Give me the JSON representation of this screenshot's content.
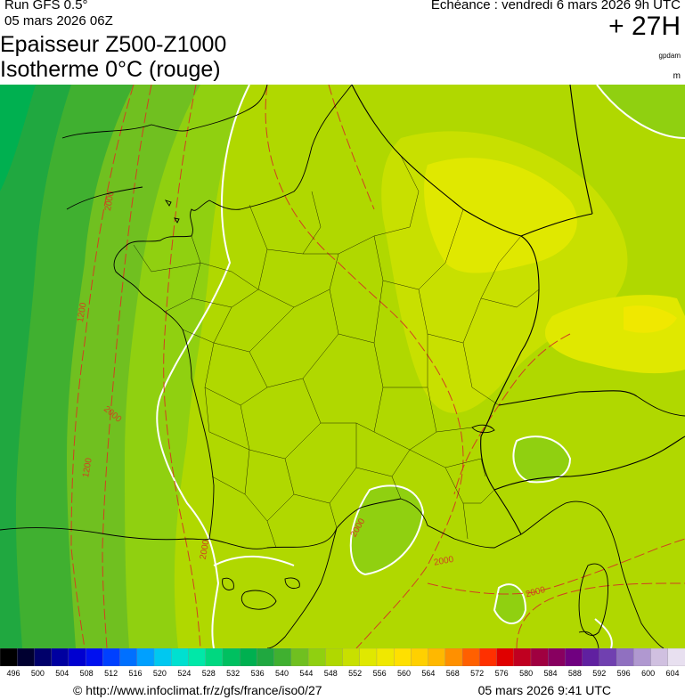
{
  "header": {
    "run": "Run GFS 0.5°",
    "run_date": "05 mars 2026 06Z",
    "valid": "Echéance : vendredi 6 mars 2026 9h UTC",
    "lead": "+ 27H",
    "title1": "Epaisseur Z500-Z1000",
    "title2": "Isotherme 0°C (rouge)",
    "unit_thickness": "gpdam",
    "unit_iso": "m"
  },
  "contour_labels": [
    {
      "id": "c1",
      "text": "2000"
    },
    {
      "id": "c2",
      "text": "1200"
    },
    {
      "id": "c3",
      "text": "2000"
    },
    {
      "id": "c4",
      "text": "1200"
    },
    {
      "id": "c5",
      "text": "2000"
    },
    {
      "id": "c6",
      "text": "2000"
    },
    {
      "id": "c7",
      "text": "2000"
    },
    {
      "id": "c8",
      "text": "2000"
    }
  ],
  "scale": {
    "ticks": [
      "496",
      "500",
      "504",
      "508",
      "512",
      "516",
      "520",
      "524",
      "528",
      "532",
      "536",
      "540",
      "544",
      "548",
      "552",
      "556",
      "560",
      "564",
      "568",
      "572",
      "576",
      "580",
      "584",
      "588",
      "592",
      "596",
      "600",
      "604"
    ],
    "colors": [
      "#000000",
      "#000030",
      "#00006a",
      "#0000a0",
      "#0000d0",
      "#0010f0",
      "#0040ff",
      "#0070ff",
      "#00a0ff",
      "#00c8f0",
      "#00e0d0",
      "#00e8a8",
      "#00d880",
      "#00c060",
      "#00b050",
      "#20a840",
      "#40b030",
      "#70c020",
      "#90d010",
      "#b0d800",
      "#c8e000",
      "#e0e800",
      "#f0e800",
      "#ffe000",
      "#ffd000",
      "#ffb800",
      "#ff9000",
      "#ff6000",
      "#ff3000",
      "#e00000",
      "#c00020",
      "#a00040",
      "#880060",
      "#700080",
      "#6020a0",
      "#7040b0",
      "#9070c0",
      "#b098d0",
      "#d0c0e0",
      "#e8e0f0"
    ],
    "range": [
      496,
      604
    ]
  },
  "footer": {
    "credit": "© http://www.infoclimat.fr/z/gfs/france/iso0/27",
    "stamp": "05 mars 2026  9:41 UTC"
  },
  "map_colors": {
    "a": "#00b050",
    "b": "#20a840",
    "c": "#40b030",
    "d": "#70c020",
    "e": "#90d010",
    "f": "#b0d800",
    "g": "#c8e000",
    "h": "#e0e800",
    "i": "#f0e800"
  }
}
